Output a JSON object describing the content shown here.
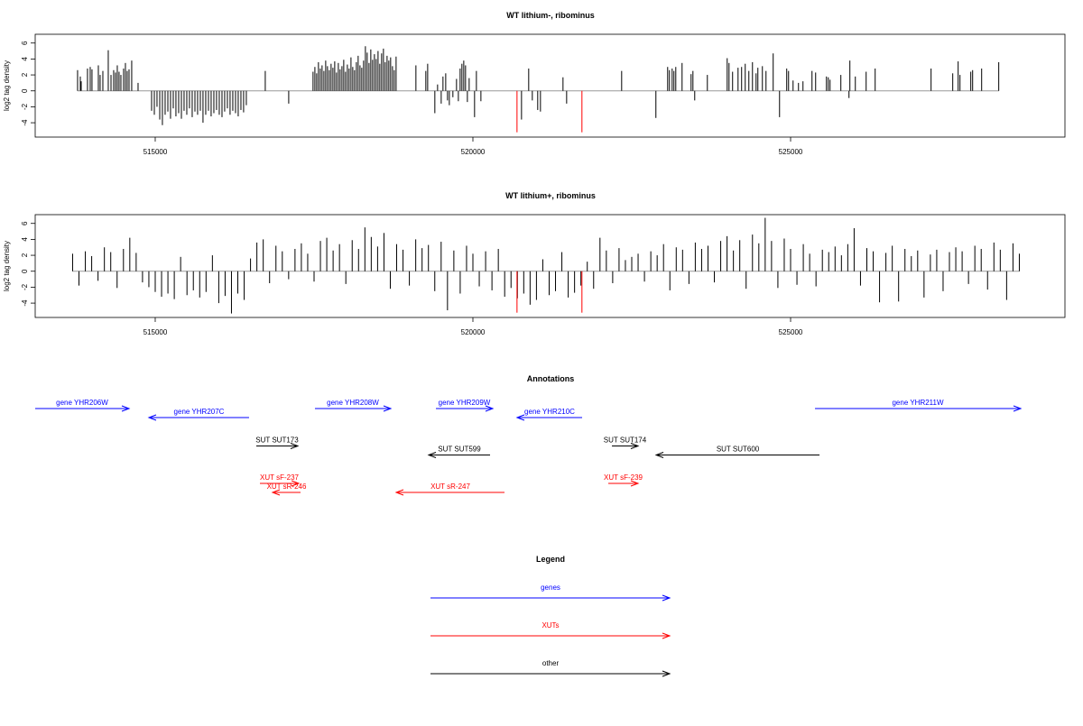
{
  "chart_data": [
    {
      "type": "spike",
      "title": "WT lithium-, ribominus",
      "ylabel": "log2 tag density",
      "xlim": [
        513111,
        529318
      ],
      "ylim": [
        -5.8,
        7.1
      ],
      "xticks": [
        515000,
        520000,
        525000
      ],
      "yticks": [
        6,
        4,
        2,
        0,
        -2,
        -4
      ],
      "baseline_color": "#999999",
      "series": [
        {
          "color": "#000000",
          "x": [
            513778,
            513821,
            513835,
            513934,
            513977,
            514005,
            514105,
            514133,
            514176,
            514261,
            514304,
            514346,
            514375,
            514403,
            514431,
            514460,
            514502,
            514531,
            514559,
            514588,
            514630,
            514730,
            514943,
            514986,
            515028,
            515071,
            515113,
            515156,
            515199,
            515241,
            515284,
            515326,
            515369,
            515412,
            515454,
            515497,
            515539,
            515582,
            515625,
            515667,
            515710,
            515752,
            515795,
            515838,
            515880,
            515923,
            515965,
            516008,
            516051,
            516093,
            516136,
            516178,
            516221,
            516264,
            516306,
            516349,
            516391,
            516434,
            516732,
            517101,
            517484,
            517513,
            517541,
            517569,
            517598,
            517626,
            517655,
            517683,
            517711,
            517740,
            517768,
            517797,
            517825,
            517853,
            517882,
            517910,
            517939,
            517967,
            517995,
            518024,
            518052,
            518081,
            518109,
            518137,
            518166,
            518194,
            518223,
            518251,
            518279,
            518308,
            518336,
            518365,
            518393,
            518421,
            518450,
            518478,
            518507,
            518535,
            518563,
            518592,
            518620,
            518649,
            518677,
            518705,
            518734,
            518762,
            518791,
            519103,
            519259,
            519288,
            519401,
            519444,
            519501,
            519529,
            519572,
            519600,
            519629,
            519685,
            519742,
            519771,
            519799,
            519827,
            519856,
            519884,
            519913,
            519941,
            520026,
            520055,
            520126,
            520765,
            520878,
            520935,
            521020,
            521063,
            521418,
            521475,
            522341,
            522880,
            523065,
            523093,
            523136,
            523164,
            523193,
            523292,
            523434,
            523463,
            523491,
            523690,
            524002,
            524031,
            524087,
            524173,
            524229,
            524286,
            524343,
            524400,
            524457,
            524485,
            524556,
            524613,
            524726,
            524826,
            524939,
            524968,
            525039,
            525124,
            525195,
            525337,
            525394,
            525564,
            525593,
            525621,
            525791,
            525919,
            525933,
            526019,
            526189,
            526331,
            527211,
            527552,
            527637,
            527666,
            527836,
            527865,
            528007,
            528276
          ],
          "values": [
            2.6,
            1.8,
            1.2,
            2.8,
            3,
            2.7,
            3.2,
            2,
            2.5,
            5.1,
            2,
            2.6,
            2.3,
            3.2,
            2.4,
            2,
            2.8,
            3.5,
            2.5,
            2.7,
            3.8,
            1,
            -2.5,
            -3,
            -2,
            -3.6,
            -4.3,
            -3,
            -2.6,
            -3.5,
            -2.2,
            -3.2,
            -2.8,
            -3.5,
            -2.5,
            -3,
            -2.2,
            -3.3,
            -2.6,
            -3,
            -2.5,
            -4,
            -3,
            -2.5,
            -3.2,
            -2.8,
            -2.4,
            -3,
            -3.3,
            -2.6,
            -2.2,
            -3,
            -2.5,
            -2.8,
            -3.2,
            -2.4,
            -2.7,
            -1.8,
            2.5,
            -1.6,
            2.4,
            3,
            2.2,
            3.6,
            2.8,
            3.2,
            2.5,
            3.8,
            3.1,
            2.6,
            3.4,
            2.9,
            3.7,
            2.3,
            3.5,
            2.7,
            3.1,
            3.9,
            2.4,
            3.3,
            2.8,
            4.2,
            3,
            2.6,
            3.6,
            4.4,
            3.2,
            2.9,
            3.8,
            5.6,
            4.8,
            3.5,
            5.2,
            3.9,
            4.6,
            4,
            5,
            3.4,
            4.7,
            5.3,
            3.6,
            4.4,
            3.8,
            4.2,
            3.1,
            2.6,
            4.3,
            3.2,
            2.5,
            3.4,
            -2.8,
            0.8,
            -1.6,
            1.8,
            2.2,
            -1.2,
            -1.8,
            -0.8,
            1.5,
            -1.3,
            2.8,
            3.4,
            3.8,
            3.2,
            -1.4,
            1.6,
            -3.3,
            2.5,
            -1.3,
            -3.6,
            2.8,
            -1.2,
            -2.4,
            -2.6,
            1.7,
            -1.6,
            2.5,
            -3.4,
            3,
            2.6,
            2.8,
            2.5,
            3,
            3.5,
            2.1,
            2.5,
            -1.2,
            2,
            4.1,
            3.5,
            2.4,
            2.9,
            3,
            3.4,
            2.5,
            3.6,
            2.2,
            2.9,
            3.1,
            2.5,
            4.7,
            -3.3,
            2.8,
            2.5,
            1.3,
            1,
            1.2,
            2.5,
            2.3,
            1.8,
            1.7,
            1.4,
            2,
            -0.9,
            3.8,
            1.8,
            2.4,
            2.8,
            2.8,
            2.2,
            3.7,
            2,
            2.4,
            2.6,
            2.8,
            3.6
          ]
        },
        {
          "color": "#ff0000",
          "x": [
            520694,
            521716
          ],
          "values": [
            -5.2,
            -5.2
          ]
        }
      ]
    },
    {
      "type": "spike",
      "title": "WT lithium+, ribominus",
      "ylabel": "log2 tag density",
      "xlim": [
        513111,
        529318
      ],
      "ylim": [
        -5.8,
        7.1
      ],
      "xticks": [
        515000,
        520000,
        525000
      ],
      "yticks": [
        6,
        4,
        2,
        0,
        -2,
        -4
      ],
      "baseline_color": "#999999",
      "series": [
        {
          "color": "#000000",
          "x": [
            513700,
            513800,
            513900,
            514000,
            514100,
            514200,
            514300,
            514400,
            514500,
            514600,
            514700,
            514800,
            514900,
            515000,
            515100,
            515200,
            515300,
            515400,
            515500,
            515600,
            515700,
            515800,
            515900,
            516000,
            516100,
            516200,
            516300,
            516400,
            516500,
            516600,
            516700,
            516800,
            516900,
            517000,
            517100,
            517200,
            517300,
            517400,
            517500,
            517600,
            517700,
            517800,
            517900,
            518000,
            518100,
            518200,
            518300,
            518400,
            518500,
            518600,
            518700,
            518800,
            518900,
            519000,
            519100,
            519200,
            519300,
            519400,
            519500,
            519600,
            519700,
            519800,
            519900,
            520000,
            520100,
            520200,
            520300,
            520400,
            520500,
            520600,
            520700,
            520800,
            520900,
            521000,
            521100,
            521200,
            521300,
            521400,
            521500,
            521600,
            521700,
            521800,
            521900,
            522000,
            522100,
            522200,
            522300,
            522400,
            522500,
            522600,
            522700,
            522800,
            522900,
            523000,
            523100,
            523200,
            523300,
            523400,
            523500,
            523600,
            523700,
            523800,
            523900,
            524000,
            524100,
            524200,
            524300,
            524400,
            524500,
            524600,
            524700,
            524800,
            524900,
            525000,
            525100,
            525200,
            525300,
            525400,
            525500,
            525600,
            525700,
            525800,
            525900,
            526000,
            526100,
            526200,
            526300,
            526400,
            526500,
            526600,
            526700,
            526800,
            526900,
            527000,
            527100,
            527200,
            527300,
            527400,
            527500,
            527600,
            527700,
            527800,
            527900,
            528000,
            528100,
            528200,
            528300,
            528400,
            528500,
            528600
          ],
          "values": [
            2.2,
            -1.8,
            2.5,
            1.9,
            -1.2,
            3,
            2.4,
            -2.1,
            2.8,
            4.2,
            2.3,
            -1.4,
            -2,
            -2.6,
            -3.2,
            -2.8,
            -3.5,
            1.8,
            -3,
            -2.4,
            -3.3,
            -2.6,
            2,
            -4,
            -3.1,
            -5.3,
            -2.8,
            -3.6,
            1.6,
            3.6,
            4,
            -1.5,
            3.2,
            2.5,
            -1,
            2.8,
            3.5,
            2.2,
            -1.3,
            3.8,
            4.2,
            2.6,
            3.4,
            -1.6,
            3.9,
            2.8,
            5.5,
            4.3,
            3.1,
            4.8,
            -2.2,
            3.4,
            2.7,
            -1.8,
            4,
            2.9,
            3.3,
            -2.5,
            3.7,
            -4.9,
            2.6,
            -2.8,
            3.2,
            2.2,
            -1.9,
            2.5,
            -2.4,
            2.8,
            -3.2,
            -2.1,
            -3.4,
            -2.8,
            -4.2,
            -3.6,
            1.5,
            -3,
            -2.5,
            2.4,
            -3.3,
            -2.7,
            -1.8,
            1.2,
            -2.2,
            4.2,
            2.6,
            -1.5,
            2.9,
            1.4,
            1.8,
            2.2,
            -1.3,
            2.5,
            2,
            3.4,
            -2.4,
            3,
            2.7,
            -1.6,
            3.6,
            2.8,
            3.2,
            -1.4,
            3.8,
            4.4,
            2.6,
            3.9,
            -2.2,
            4.6,
            3.5,
            6.7,
            3.8,
            -2.1,
            4.1,
            2.8,
            -1.7,
            3.4,
            2.2,
            -1.9,
            2.7,
            2.4,
            3.1,
            2,
            3.4,
            5.4,
            -1.8,
            2.9,
            2.5,
            -3.9,
            2.3,
            3.2,
            -3.8,
            2.8,
            1.9,
            2.6,
            -3.3,
            2.1,
            2.7,
            -2.5,
            2.4,
            3,
            2.5,
            -1.6,
            3.2,
            2.8,
            -2.3,
            3.6,
            2.7,
            -3.6,
            3.5,
            2.2
          ]
        },
        {
          "color": "#ff0000",
          "x": [
            520694,
            521716
          ],
          "values": [
            -5.2,
            -5.2
          ]
        }
      ]
    }
  ],
  "annotations": {
    "title": "Annotations",
    "features": [
      {
        "label": "gene YHR206W",
        "color": "#0000ff",
        "start": 513111,
        "end": 514588
      },
      {
        "label": "gene YHR207C",
        "color": "#0000ff",
        "start": 516477,
        "end": 514901
      },
      {
        "label": "gene YHR208W",
        "color": "#0000ff",
        "start": 517514,
        "end": 518707
      },
      {
        "label": "gene YHR209W",
        "color": "#0000ff",
        "start": 519418,
        "end": 520312
      },
      {
        "label": "gene YHR210C",
        "color": "#0000ff",
        "start": 521719,
        "end": 520696
      },
      {
        "label": "gene YHR211W",
        "color": "#0000ff",
        "start": 525384,
        "end": 528622
      },
      {
        "label": "SUT SUT173",
        "color": "#000000",
        "start": 516591,
        "end": 517244
      },
      {
        "label": "SUT SUT599",
        "color": "#000000",
        "start": 520270,
        "end": 519304
      },
      {
        "label": "SUT SUT174",
        "color": "#000000",
        "start": 522188,
        "end": 522599
      },
      {
        "label": "SUT SUT600",
        "color": "#000000",
        "start": 525455,
        "end": 522884
      },
      {
        "label": "XUT sF-237",
        "color": "#ff0000",
        "start": 516648,
        "end": 517259
      },
      {
        "label": "XUT sR-246",
        "color": "#ff0000",
        "start": 517287,
        "end": 516847
      },
      {
        "label": "XUT sR-247",
        "color": "#ff0000",
        "start": 520497,
        "end": 518793
      },
      {
        "label": "XUT sF-239",
        "color": "#ff0000",
        "start": 522131,
        "end": 522599
      }
    ]
  },
  "legend": {
    "title": "Legend",
    "items": [
      {
        "label": "genes",
        "color": "#0000ff"
      },
      {
        "label": "XUTs",
        "color": "#ff0000"
      },
      {
        "label": "other",
        "color": "#000000"
      }
    ]
  }
}
